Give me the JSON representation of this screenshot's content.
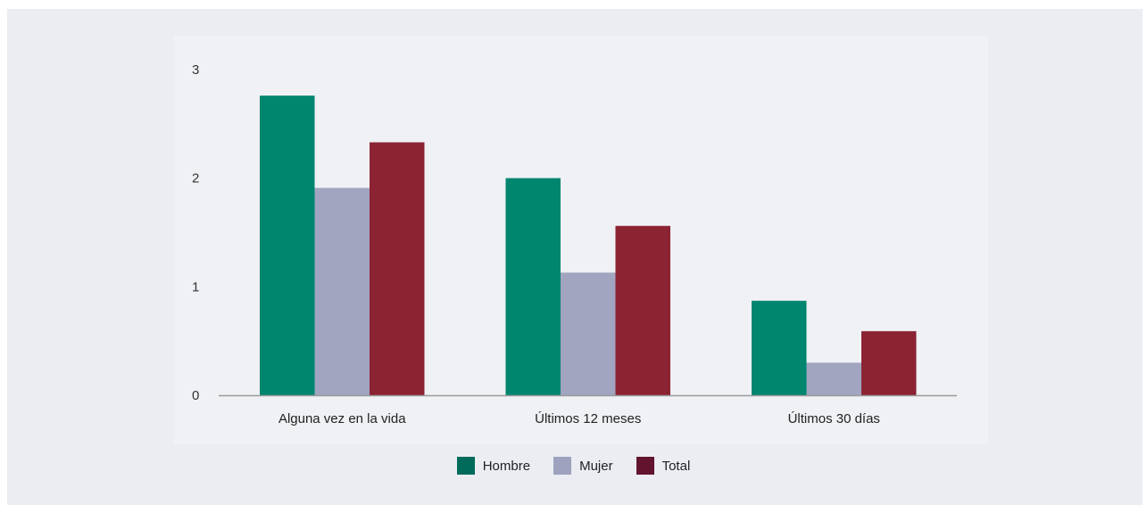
{
  "chart_data": {
    "type": "bar",
    "title": "",
    "xlabel": "",
    "ylabel": "",
    "categories": [
      "Alguna vez en la vida",
      "Últimos 12 meses",
      "Últimos 30 días"
    ],
    "series": [
      {
        "name": "Hombre",
        "color": "#00856f",
        "values": [
          2.76,
          2.0,
          0.87
        ]
      },
      {
        "name": "Mujer",
        "color": "#a1a5c0",
        "values": [
          1.91,
          1.13,
          0.3
        ]
      },
      {
        "name": "Total",
        "color": "#8b2332",
        "values": [
          2.33,
          1.56,
          0.59
        ]
      }
    ],
    "ylim": [
      0,
      3
    ],
    "yticks": [
      0,
      1,
      2,
      3
    ],
    "grid": false,
    "legend_position": "bottom"
  },
  "legend": {
    "items": [
      {
        "label": "Hombre",
        "color": "#006b5b"
      },
      {
        "label": "Mujer",
        "color": "#9ea2be"
      },
      {
        "label": "Total",
        "color": "#62132e"
      }
    ]
  }
}
